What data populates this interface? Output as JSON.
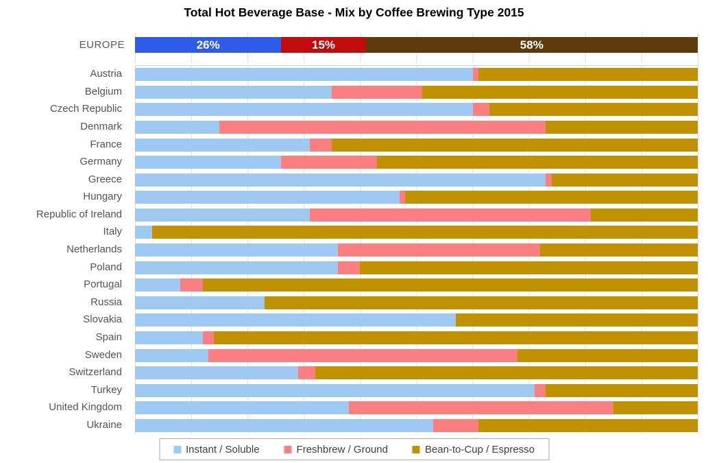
{
  "title": "Total Hot Beverage Base - Mix by Coffee Brewing Type 2015",
  "colors": {
    "instant_country": "#9DC9F3",
    "freshbrew_country": "#F97F81",
    "beantocup_country": "#C09200",
    "instant_europe": "#2E5BE8",
    "freshbrew_europe": "#C00C0C",
    "beantocup_europe": "#5E3A0B",
    "gridline": "#DCDCDC",
    "label_gray": "#595959"
  },
  "europe": {
    "label": "EUROPE",
    "segments": [
      {
        "name": "Instant / Soluble",
        "value": 26,
        "display": "26%",
        "color": "#2E5BE8"
      },
      {
        "name": "Freshbrew / Ground",
        "value": 15,
        "display": "15%",
        "color": "#C00C0C"
      },
      {
        "name": "Bean-to-Cup / Espresso",
        "value": 58,
        "display": "58%",
        "color": "#5E3A0B"
      }
    ]
  },
  "legend": {
    "items": [
      {
        "label": "Instant / Soluble",
        "color": "#9DC9F3"
      },
      {
        "label": "Freshbrew / Ground",
        "color": "#F97F81"
      },
      {
        "label": "Bean-to-Cup / Espresso",
        "color": "#C09200"
      }
    ]
  },
  "chart_data": {
    "type": "bar",
    "stacked": true,
    "orientation": "horizontal",
    "title": "Total Hot Beverage Base - Mix by Coffee Brewing Type 2015",
    "xlim": [
      0,
      100
    ],
    "unit": "percent",
    "gridline_step": 10,
    "grid": true,
    "legend_position": "bottom",
    "europe_totals": {
      "Instant / Soluble": 26,
      "Freshbrew / Ground": 15,
      "Bean-to-Cup / Espresso": 58
    },
    "categories": [
      "Austria",
      "Belgium",
      "Czech Republic",
      "Denmark",
      "France",
      "Germany",
      "Greece",
      "Hungary",
      "Republic of Ireland",
      "Italy",
      "Netherlands",
      "Poland",
      "Portugal",
      "Russia",
      "Slovakia",
      "Spain",
      "Sweden",
      "Switzerland",
      "Turkey",
      "United Kingdom",
      "Ukraine"
    ],
    "series": [
      {
        "name": "Instant / Soluble",
        "color": "#9DC9F3",
        "values": [
          60,
          35,
          60,
          15,
          31,
          26,
          73,
          47,
          31,
          3,
          36,
          36,
          8,
          23,
          57,
          12,
          13,
          29,
          71,
          38,
          53
        ]
      },
      {
        "name": "Freshbrew / Ground",
        "color": "#F97F81",
        "values": [
          1,
          16,
          3,
          58,
          4,
          17,
          1,
          1,
          50,
          0,
          36,
          4,
          4,
          0,
          0,
          2,
          55,
          3,
          2,
          47,
          8
        ]
      },
      {
        "name": "Bean-to-Cup / Espresso",
        "color": "#C09200",
        "values": [
          39,
          49,
          37,
          27,
          65,
          57,
          26,
          52,
          19,
          97,
          28,
          60,
          88,
          77,
          43,
          86,
          32,
          68,
          27,
          15,
          39
        ]
      }
    ]
  }
}
